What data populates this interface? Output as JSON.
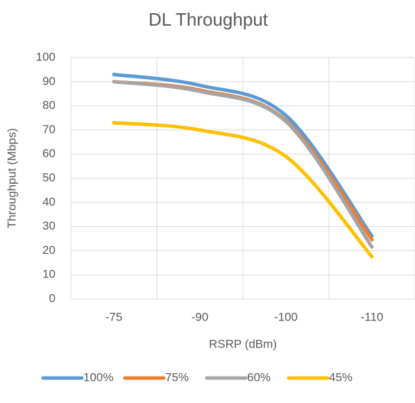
{
  "chart_data": {
    "type": "line",
    "title": "DL Throughput",
    "x_label": "RSRP (dBm)",
    "y_label": "Throughput (Mbps)",
    "categories": [
      "-75",
      "-90",
      "-100",
      "-110"
    ],
    "series": [
      {
        "name": "100%",
        "color": "#5b9bd5",
        "values": [
          93,
          88.5,
          76,
          26
        ]
      },
      {
        "name": "75%",
        "color": "#ed7d31",
        "values": [
          90,
          86.5,
          74,
          24.5
        ]
      },
      {
        "name": "60%",
        "color": "#a5a5a5",
        "values": [
          90,
          86,
          73.5,
          21.5
        ]
      },
      {
        "name": "45%",
        "color": "#ffc000",
        "values": [
          73,
          70,
          59,
          17.5
        ]
      }
    ],
    "ylim": [
      0,
      100
    ],
    "yticks": [
      0,
      10,
      20,
      30,
      40,
      50,
      60,
      70,
      80,
      90,
      100
    ],
    "grid": true,
    "smooth": true,
    "legend": "bottom"
  }
}
